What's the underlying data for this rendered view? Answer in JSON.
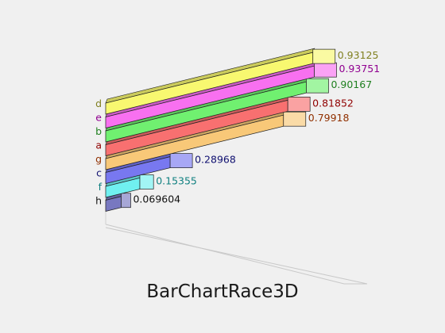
{
  "chart_data": {
    "type": "bar",
    "title": "BarChartRace3D",
    "orientation": "horizontal",
    "xlim": [
      0,
      1
    ],
    "grid": false,
    "categories": [
      "d",
      "e",
      "b",
      "a",
      "g",
      "c",
      "f",
      "h"
    ],
    "values": [
      0.93125,
      0.93751,
      0.90167,
      0.81852,
      0.79918,
      0.28968,
      0.15355,
      0.069604
    ],
    "value_labels": [
      "0.93125",
      "0.93751",
      "0.90167",
      "0.81852",
      "0.79918",
      "0.28968",
      "0.15355",
      "0.069604"
    ],
    "colors": [
      "#f8f870",
      "#f870f0",
      "#70f070",
      "#f87070",
      "#f8c878",
      "#7878f0",
      "#70f0f0",
      "#7878c0"
    ],
    "label_colors": [
      "#808020",
      "#900090",
      "#208020",
      "#900000",
      "#903000",
      "#101070",
      "#108080",
      "#101010"
    ]
  }
}
